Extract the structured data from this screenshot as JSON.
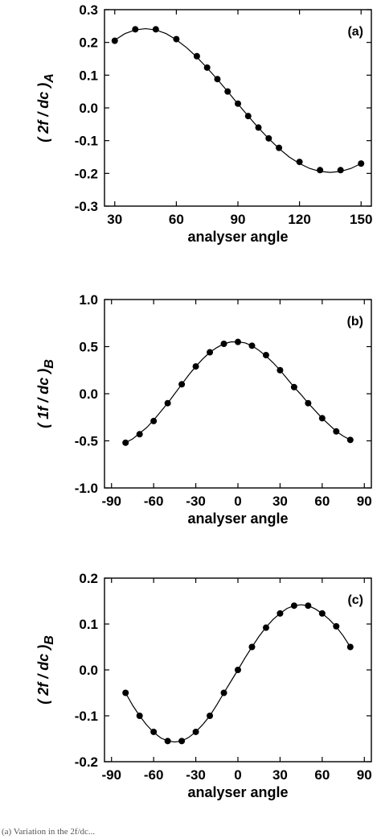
{
  "chart_data": [
    {
      "type": "line",
      "panel_label": "(a)",
      "ylabel_main": "( 2f / dc )",
      "ylabel_sub": "A",
      "xlabel": "analyser angle",
      "xlim": [
        25,
        155
      ],
      "ylim": [
        -0.3,
        0.3
      ],
      "xticks": [
        30,
        60,
        90,
        120,
        150
      ],
      "yticks": [
        -0.3,
        -0.2,
        -0.1,
        0.0,
        0.1,
        0.2,
        0.3
      ],
      "ytick_labels": [
        "-0.3",
        "-0.2",
        "-0.1",
        "0.0",
        "0.1",
        "0.2",
        "0.3"
      ],
      "xtick_labels": [
        "30",
        "60",
        "90",
        "120",
        "150"
      ],
      "points": {
        "x": [
          30,
          40,
          50,
          60,
          70,
          75,
          80,
          85,
          90,
          95,
          100,
          105,
          110,
          120,
          130,
          140,
          150
        ],
        "y": [
          0.205,
          0.24,
          0.24,
          0.21,
          0.158,
          0.123,
          0.088,
          0.05,
          0.013,
          -0.025,
          -0.06,
          -0.093,
          -0.122,
          -0.165,
          -0.19,
          -0.19,
          -0.17
        ]
      },
      "curve": {
        "x": [
          30,
          35,
          40,
          45,
          50,
          55,
          60,
          65,
          70,
          75,
          80,
          85,
          90,
          95,
          100,
          105,
          110,
          115,
          120,
          125,
          130,
          135,
          140,
          145,
          150
        ],
        "y": [
          0.207,
          0.227,
          0.238,
          0.242,
          0.238,
          0.227,
          0.208,
          0.184,
          0.155,
          0.122,
          0.087,
          0.05,
          0.012,
          -0.025,
          -0.061,
          -0.094,
          -0.124,
          -0.15,
          -0.17,
          -0.185,
          -0.194,
          -0.197,
          -0.194,
          -0.185,
          -0.17
        ]
      }
    },
    {
      "type": "line",
      "panel_label": "(b)",
      "ylabel_main": "( 1f / dc )",
      "ylabel_sub": "B",
      "xlabel": "analyser angle",
      "xlim": [
        -95,
        95
      ],
      "ylim": [
        -1.0,
        1.0
      ],
      "xticks": [
        -90,
        -60,
        -30,
        0,
        30,
        60,
        90
      ],
      "yticks": [
        -1.0,
        -0.5,
        0.0,
        0.5,
        1.0
      ],
      "ytick_labels": [
        "-1.0",
        "-0.5",
        "0.0",
        "0.5",
        "1.0"
      ],
      "xtick_labels": [
        "-90",
        "-60",
        "-30",
        "0",
        "30",
        "60",
        "90"
      ],
      "points": {
        "x": [
          -80,
          -70,
          -60,
          -50,
          -40,
          -30,
          -20,
          -10,
          0,
          10,
          20,
          30,
          40,
          50,
          60,
          70,
          80
        ],
        "y": [
          -0.52,
          -0.43,
          -0.29,
          -0.1,
          0.1,
          0.29,
          0.44,
          0.53,
          0.55,
          0.51,
          0.41,
          0.25,
          0.07,
          -0.1,
          -0.26,
          -0.4,
          -0.49
        ]
      },
      "curve": {
        "x": [
          -80,
          -75,
          -70,
          -65,
          -60,
          -55,
          -50,
          -45,
          -40,
          -35,
          -30,
          -25,
          -20,
          -15,
          -10,
          -5,
          0,
          5,
          10,
          15,
          20,
          25,
          30,
          35,
          40,
          45,
          50,
          55,
          60,
          65,
          70,
          75,
          80
        ],
        "y": [
          -0.52,
          -0.48,
          -0.42,
          -0.36,
          -0.28,
          -0.19,
          -0.1,
          0.0,
          0.1,
          0.2,
          0.29,
          0.37,
          0.44,
          0.49,
          0.53,
          0.55,
          0.55,
          0.54,
          0.51,
          0.46,
          0.4,
          0.33,
          0.25,
          0.16,
          0.07,
          -0.01,
          -0.1,
          -0.18,
          -0.26,
          -0.33,
          -0.4,
          -0.45,
          -0.49
        ]
      }
    },
    {
      "type": "line",
      "panel_label": "(c)",
      "ylabel_main": "( 2f / dc )",
      "ylabel_sub": "B",
      "xlabel": "analyser angle",
      "xlim": [
        -95,
        95
      ],
      "ylim": [
        -0.2,
        0.2
      ],
      "xticks": [
        -90,
        -60,
        -30,
        0,
        30,
        60,
        90
      ],
      "yticks": [
        -0.2,
        -0.1,
        0.0,
        0.1,
        0.2
      ],
      "ytick_labels": [
        "-0.2",
        "-0.1",
        "0.0",
        "0.1",
        "0.2"
      ],
      "xtick_labels": [
        "-90",
        "-60",
        "-30",
        "0",
        "30",
        "60",
        "90"
      ],
      "points": {
        "x": [
          -80,
          -70,
          -60,
          -50,
          -40,
          -30,
          -20,
          -10,
          0,
          10,
          20,
          30,
          40,
          50,
          60,
          70,
          80
        ],
        "y": [
          -0.05,
          -0.1,
          -0.135,
          -0.155,
          -0.155,
          -0.135,
          -0.1,
          -0.05,
          0.0,
          0.05,
          0.092,
          0.123,
          0.14,
          0.14,
          0.123,
          0.095,
          0.05
        ]
      },
      "curve": {
        "x": [
          -80,
          -75,
          -70,
          -65,
          -60,
          -55,
          -50,
          -45,
          -40,
          -35,
          -30,
          -25,
          -20,
          -15,
          -10,
          -5,
          0,
          5,
          10,
          15,
          20,
          25,
          30,
          35,
          40,
          45,
          50,
          55,
          60,
          65,
          70,
          75,
          80
        ],
        "y": [
          -0.05,
          -0.077,
          -0.1,
          -0.12,
          -0.136,
          -0.148,
          -0.155,
          -0.157,
          -0.155,
          -0.147,
          -0.135,
          -0.119,
          -0.1,
          -0.076,
          -0.05,
          -0.025,
          0.0,
          0.026,
          0.05,
          0.073,
          0.093,
          0.11,
          0.123,
          0.134,
          0.14,
          0.142,
          0.14,
          0.133,
          0.123,
          0.11,
          0.094,
          0.074,
          0.05
        ]
      }
    }
  ],
  "caption_text": "(a) Variation in the 2f/dc...",
  "colors": {
    "ink": "#000000",
    "background": "#ffffff"
  }
}
